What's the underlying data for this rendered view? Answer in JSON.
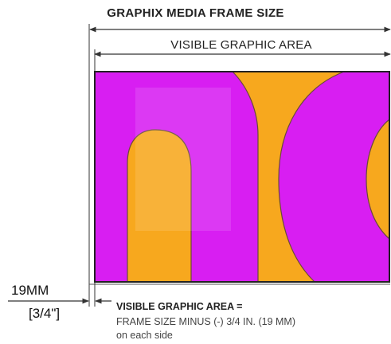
{
  "labels": {
    "frame_size_title": "GRAPHIX MEDIA FRAME SIZE",
    "visible_area_title": "VISIBLE GRAPHIC AREA",
    "border_mm": "19MM",
    "border_inch": "[3/4\"]",
    "formula_heading": "VISIBLE GRAPHIC AREA =",
    "formula_line": "FRAME SIZE MINUS (-) 3/4 IN. (19 MM)",
    "formula_tail": "on each side"
  },
  "colors": {
    "magenta": "#d81ef2",
    "orange": "#f7a81e",
    "line": "#333333",
    "frame_border": "#222222"
  }
}
